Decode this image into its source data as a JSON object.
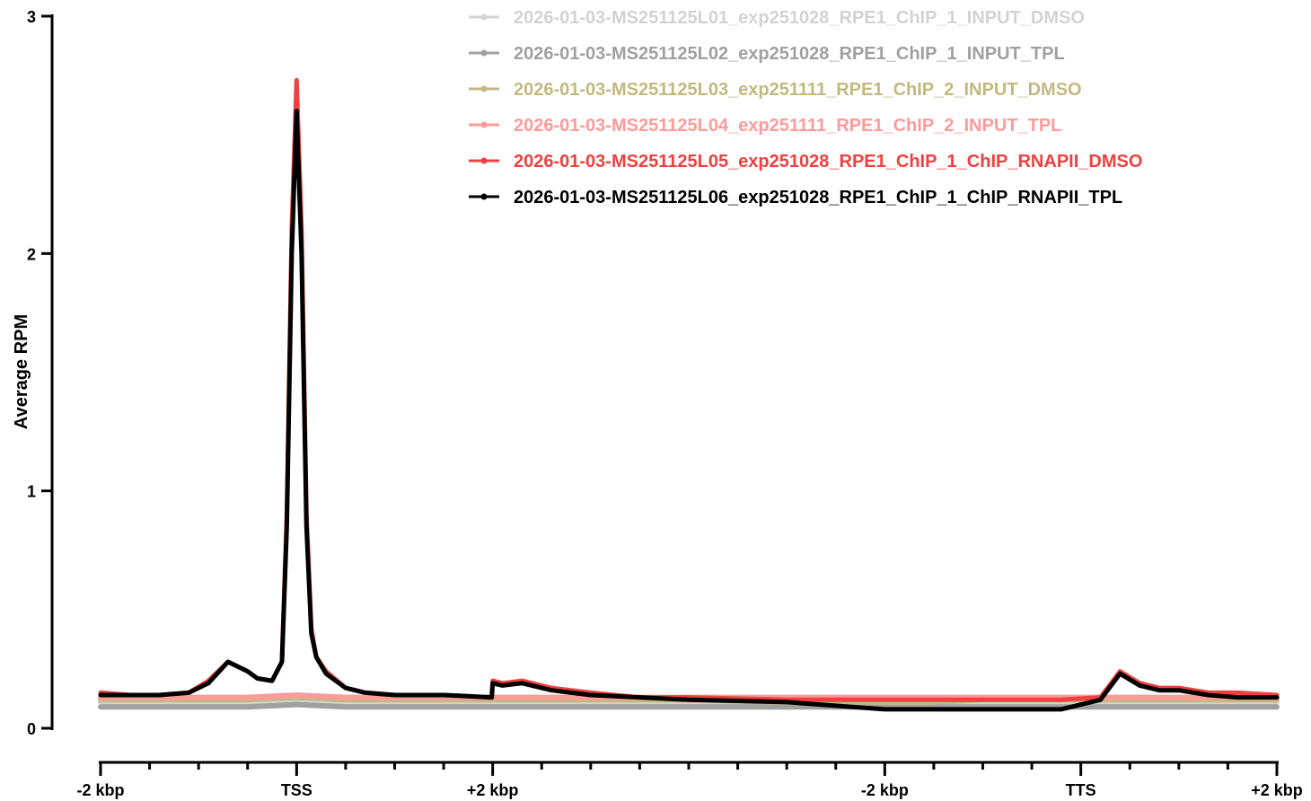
{
  "chart_data": {
    "type": "line",
    "title": "",
    "ylabel": "Average RPM",
    "xlabel": "",
    "ylim": [
      0,
      3
    ],
    "xlim": [
      0,
      12
    ],
    "yticks": [
      "0",
      "1",
      "2",
      "3"
    ],
    "xticks": [
      {
        "x": 0,
        "label": "-2 kbp"
      },
      {
        "x": 2,
        "label": "TSS"
      },
      {
        "x": 4,
        "label": "+2 kbp"
      },
      {
        "x": 8,
        "label": "-2 kbp"
      },
      {
        "x": 10,
        "label": "TTS"
      },
      {
        "x": 12,
        "label": "+2 kbp"
      }
    ],
    "legend_position": "top-right",
    "grid": false,
    "series": [
      {
        "name": "2026-01-03-MS251125L01_exp251028_RPE1_ChIP_1_INPUT_DMSO",
        "color": "#d3d3d3",
        "x": [
          0,
          0.5,
          1,
          1.5,
          2,
          2.5,
          3,
          3.5,
          4,
          5,
          6,
          7,
          8,
          8.5,
          9,
          9.5,
          10,
          10.5,
          11,
          11.5,
          12
        ],
        "y": [
          0.11,
          0.11,
          0.11,
          0.11,
          0.12,
          0.11,
          0.11,
          0.11,
          0.11,
          0.11,
          0.11,
          0.11,
          0.11,
          0.11,
          0.11,
          0.11,
          0.11,
          0.11,
          0.11,
          0.11,
          0.11
        ]
      },
      {
        "name": "2026-01-03-MS251125L02_exp251028_RPE1_ChIP_1_INPUT_TPL",
        "color": "#a0a0a0",
        "x": [
          0,
          0.5,
          1,
          1.5,
          2,
          2.5,
          3,
          3.5,
          4,
          5,
          6,
          7,
          8,
          8.5,
          9,
          9.5,
          10,
          10.5,
          11,
          11.5,
          12
        ],
        "y": [
          0.09,
          0.09,
          0.09,
          0.09,
          0.1,
          0.09,
          0.09,
          0.09,
          0.09,
          0.09,
          0.09,
          0.09,
          0.09,
          0.09,
          0.09,
          0.09,
          0.09,
          0.09,
          0.09,
          0.09,
          0.09
        ]
      },
      {
        "name": "2026-01-03-MS251125L03_exp251111_RPE1_ChIP_2_INPUT_DMSO",
        "color": "#c2b97f",
        "x": [
          0,
          0.5,
          1,
          1.5,
          2,
          2.5,
          3,
          3.5,
          4,
          5,
          6,
          7,
          8,
          8.5,
          9,
          9.5,
          10,
          10.5,
          11,
          11.5,
          12
        ],
        "y": [
          0.12,
          0.12,
          0.12,
          0.12,
          0.13,
          0.12,
          0.12,
          0.12,
          0.12,
          0.12,
          0.12,
          0.11,
          0.11,
          0.11,
          0.12,
          0.12,
          0.12,
          0.12,
          0.12,
          0.12,
          0.12
        ]
      },
      {
        "name": "2026-01-03-MS251125L04_exp251111_RPE1_ChIP_2_INPUT_TPL",
        "color": "#ff9a9a",
        "x": [
          0,
          0.5,
          1,
          1.5,
          2,
          2.5,
          3,
          3.5,
          4,
          5,
          6,
          7,
          8,
          8.5,
          9,
          9.5,
          10,
          10.5,
          11,
          11.5,
          12
        ],
        "y": [
          0.13,
          0.13,
          0.13,
          0.13,
          0.14,
          0.13,
          0.13,
          0.13,
          0.13,
          0.13,
          0.13,
          0.13,
          0.13,
          0.13,
          0.13,
          0.13,
          0.13,
          0.13,
          0.13,
          0.13,
          0.13
        ]
      },
      {
        "name": "2026-01-03-MS251125L05_exp251028_RPE1_ChIP_1_ChIP_RNAPII_DMSO",
        "color": "#f04040",
        "x": [
          0,
          0.3,
          0.6,
          0.9,
          1.1,
          1.3,
          1.5,
          1.6,
          1.75,
          1.85,
          1.9,
          1.95,
          2.0,
          2.05,
          2.1,
          2.15,
          2.2,
          2.3,
          2.5,
          2.7,
          3.0,
          3.5,
          3.99,
          4.0,
          4.1,
          4.3,
          4.6,
          5.0,
          5.5,
          6.0,
          7.0,
          8.0,
          9.0,
          9.5,
          9.8,
          10.2,
          10.4,
          10.6,
          10.8,
          11.0,
          11.3,
          11.6,
          12.0
        ],
        "y": [
          0.15,
          0.14,
          0.14,
          0.15,
          0.2,
          0.28,
          0.24,
          0.21,
          0.2,
          0.28,
          0.9,
          2.1,
          2.73,
          2.1,
          0.9,
          0.42,
          0.3,
          0.24,
          0.17,
          0.15,
          0.14,
          0.14,
          0.13,
          0.2,
          0.19,
          0.2,
          0.17,
          0.15,
          0.13,
          0.13,
          0.12,
          0.12,
          0.12,
          0.12,
          0.12,
          0.13,
          0.24,
          0.19,
          0.17,
          0.17,
          0.15,
          0.15,
          0.14
        ]
      },
      {
        "name": "2026-01-03-MS251125L06_exp251028_RPE1_ChIP_1_ChIP_RNAPII_TPL",
        "color": "#000000",
        "x": [
          0,
          0.3,
          0.6,
          0.9,
          1.1,
          1.3,
          1.5,
          1.6,
          1.75,
          1.85,
          1.9,
          1.95,
          2.0,
          2.05,
          2.1,
          2.15,
          2.2,
          2.3,
          2.5,
          2.7,
          3.0,
          3.5,
          3.99,
          4.0,
          4.1,
          4.3,
          4.6,
          5.0,
          5.5,
          6.0,
          7.0,
          8.0,
          8.5,
          9.0,
          9.5,
          9.8,
          10.2,
          10.4,
          10.6,
          10.8,
          11.0,
          11.3,
          11.6,
          12.0
        ],
        "y": [
          0.14,
          0.14,
          0.14,
          0.15,
          0.19,
          0.28,
          0.24,
          0.21,
          0.2,
          0.28,
          0.85,
          2.0,
          2.6,
          2.0,
          0.85,
          0.4,
          0.3,
          0.23,
          0.17,
          0.15,
          0.14,
          0.14,
          0.13,
          0.19,
          0.18,
          0.19,
          0.16,
          0.14,
          0.13,
          0.12,
          0.11,
          0.08,
          0.08,
          0.08,
          0.08,
          0.08,
          0.12,
          0.23,
          0.18,
          0.16,
          0.16,
          0.14,
          0.13,
          0.13
        ]
      }
    ]
  }
}
